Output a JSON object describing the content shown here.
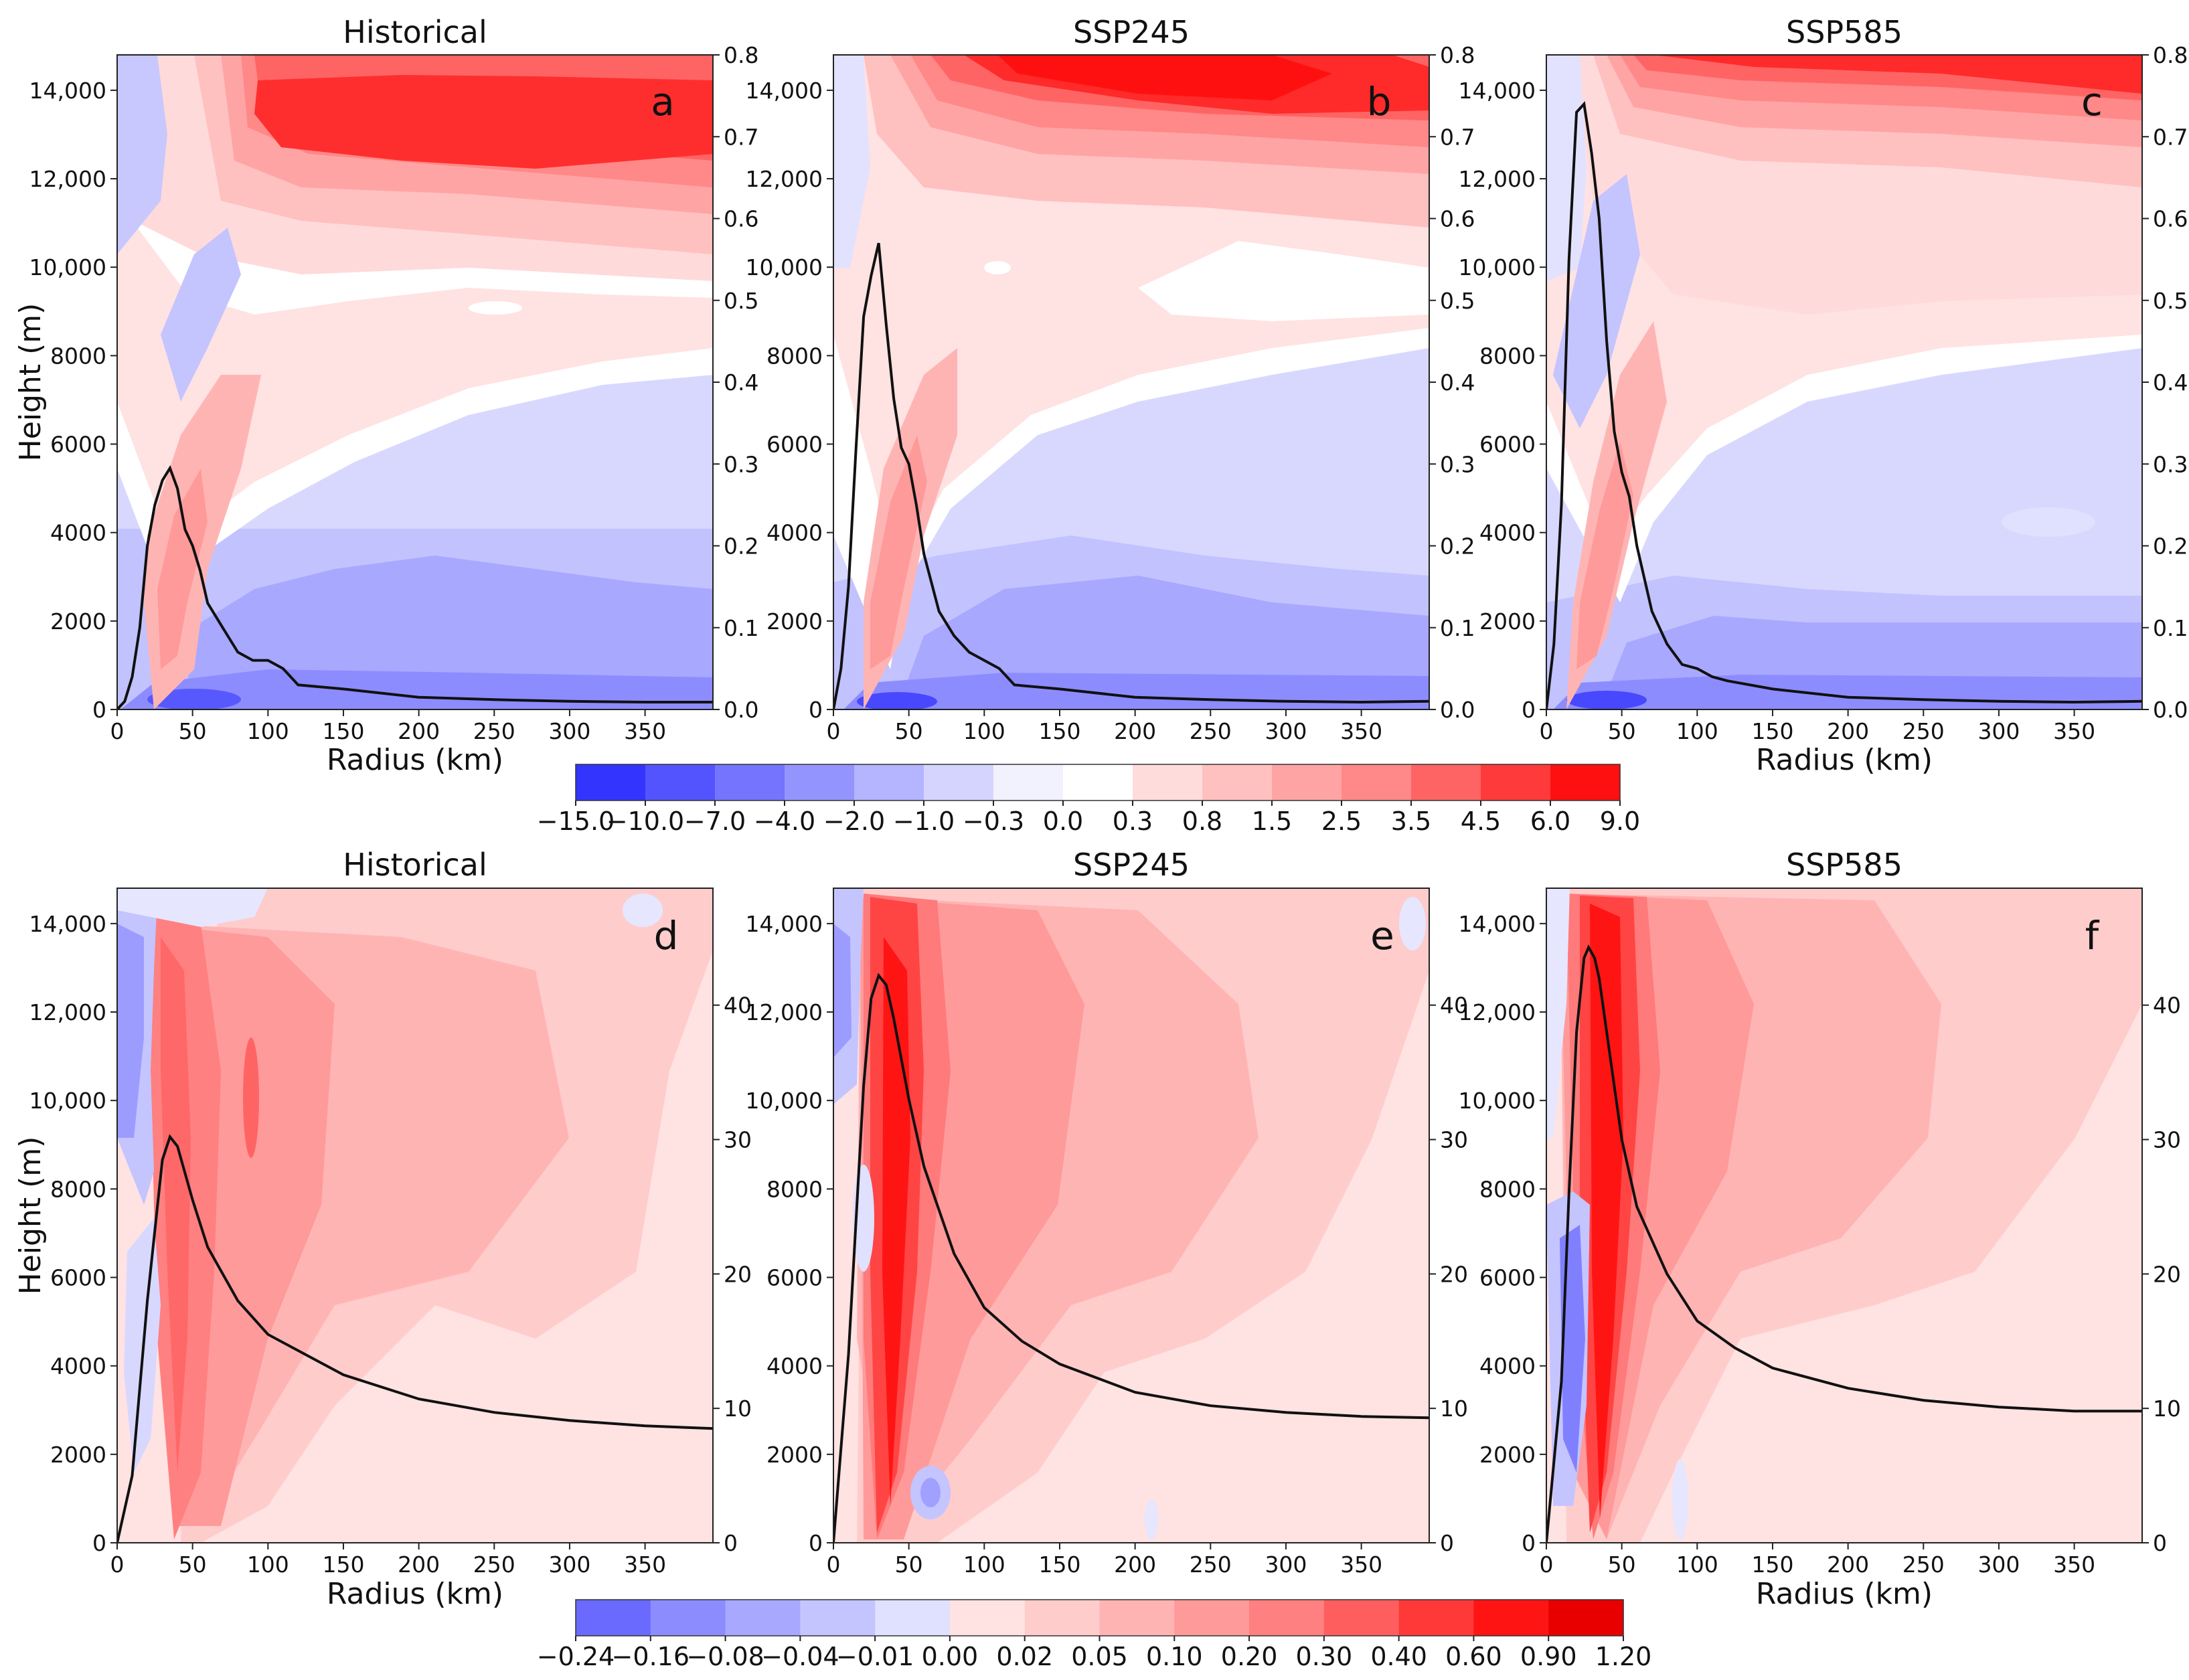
{
  "chart_data": [
    {
      "panel": "a",
      "type": "contour",
      "title": "Historical",
      "xlabel": "Radius (km)",
      "ylabel": "Height (m)",
      "xlim": [
        0,
        395
      ],
      "ylim": [
        0,
        14800
      ],
      "y2lim": [
        0,
        0.8
      ],
      "xticks": [
        0,
        50,
        100,
        150,
        200,
        250,
        300,
        350
      ],
      "yticks": [
        {
          "v": 0,
          "label": "0"
        },
        {
          "v": 2000,
          "label": "2000"
        },
        {
          "v": 4000,
          "label": "4000"
        },
        {
          "v": 6000,
          "label": "6000"
        },
        {
          "v": 8000,
          "label": "8000"
        },
        {
          "v": 10000,
          "label": "10,000"
        },
        {
          "v": 12000,
          "label": "12,000"
        },
        {
          "v": 14000,
          "label": "14,000"
        }
      ],
      "y2ticks": [
        "0.0",
        "0.1",
        "0.2",
        "0.3",
        "0.4",
        "0.5",
        "0.6",
        "0.7",
        "0.8"
      ],
      "line": {
        "x": [
          0,
          5,
          10,
          15,
          20,
          25,
          30,
          35,
          40,
          45,
          50,
          55,
          60,
          70,
          80,
          90,
          100,
          110,
          120,
          150,
          200,
          250,
          300,
          350,
          395
        ],
        "y": [
          0.0,
          0.01,
          0.04,
          0.1,
          0.2,
          0.25,
          0.28,
          0.295,
          0.27,
          0.22,
          0.2,
          0.17,
          0.13,
          0.1,
          0.07,
          0.06,
          0.06,
          0.05,
          0.03,
          0.025,
          0.015,
          0.012,
          0.01,
          0.009,
          0.009
        ]
      }
    },
    {
      "panel": "b",
      "type": "contour",
      "title": "SSP245",
      "xlabel": "",
      "ylabel": "",
      "xlim": [
        0,
        395
      ],
      "ylim": [
        0,
        14800
      ],
      "y2lim": [
        0,
        0.8
      ],
      "xticks": [
        0,
        50,
        100,
        150,
        200,
        250,
        300,
        350
      ],
      "yticks": [
        {
          "v": 0,
          "label": "0"
        },
        {
          "v": 2000,
          "label": "2000"
        },
        {
          "v": 4000,
          "label": "4000"
        },
        {
          "v": 6000,
          "label": "6000"
        },
        {
          "v": 8000,
          "label": "8000"
        },
        {
          "v": 10000,
          "label": "10,000"
        },
        {
          "v": 12000,
          "label": "12,000"
        },
        {
          "v": 14000,
          "label": "14,000"
        }
      ],
      "y2ticks": [
        "0.0",
        "0.1",
        "0.2",
        "0.3",
        "0.4",
        "0.5",
        "0.6",
        "0.7",
        "0.8"
      ],
      "line": {
        "x": [
          0,
          5,
          10,
          15,
          20,
          25,
          30,
          35,
          40,
          45,
          50,
          55,
          60,
          70,
          80,
          90,
          100,
          110,
          120,
          150,
          200,
          250,
          300,
          350,
          395
        ],
        "y": [
          0.0,
          0.05,
          0.15,
          0.32,
          0.48,
          0.53,
          0.57,
          0.47,
          0.38,
          0.32,
          0.3,
          0.25,
          0.19,
          0.12,
          0.09,
          0.07,
          0.06,
          0.05,
          0.03,
          0.025,
          0.015,
          0.012,
          0.01,
          0.009,
          0.01
        ]
      }
    },
    {
      "panel": "c",
      "type": "contour",
      "title": "SSP585",
      "xlabel": "Radius (km)",
      "ylabel": "",
      "xlim": [
        0,
        395
      ],
      "ylim": [
        0,
        14800
      ],
      "y2lim": [
        0,
        0.8
      ],
      "xticks": [
        0,
        50,
        100,
        150,
        200,
        250,
        300,
        350
      ],
      "yticks": [
        {
          "v": 0,
          "label": "0"
        },
        {
          "v": 2000,
          "label": "2000"
        },
        {
          "v": 4000,
          "label": "4000"
        },
        {
          "v": 6000,
          "label": "6000"
        },
        {
          "v": 8000,
          "label": "8000"
        },
        {
          "v": 10000,
          "label": "10,000"
        },
        {
          "v": 12000,
          "label": "12,000"
        },
        {
          "v": 14000,
          "label": "14,000"
        }
      ],
      "y2ticks": [
        "0.0",
        "0.1",
        "0.2",
        "0.3",
        "0.4",
        "0.5",
        "0.6",
        "0.7",
        "0.8"
      ],
      "line": {
        "x": [
          0,
          5,
          10,
          15,
          20,
          25,
          30,
          35,
          40,
          45,
          50,
          55,
          60,
          70,
          80,
          90,
          100,
          110,
          120,
          150,
          200,
          250,
          300,
          350,
          395
        ],
        "y": [
          0.0,
          0.08,
          0.25,
          0.55,
          0.73,
          0.74,
          0.68,
          0.6,
          0.45,
          0.34,
          0.29,
          0.26,
          0.2,
          0.12,
          0.08,
          0.055,
          0.05,
          0.04,
          0.035,
          0.025,
          0.015,
          0.012,
          0.01,
          0.009,
          0.01
        ]
      }
    },
    {
      "panel": "d",
      "type": "contour",
      "title": "Historical",
      "xlabel": "Radius (km)",
      "ylabel": "Height (m)",
      "xlim": [
        0,
        395
      ],
      "ylim": [
        0,
        14800
      ],
      "y2lim": [
        0,
        48.7
      ],
      "xticks": [
        0,
        50,
        100,
        150,
        200,
        250,
        300,
        350
      ],
      "yticks": [
        {
          "v": 0,
          "label": "0"
        },
        {
          "v": 2000,
          "label": "2000"
        },
        {
          "v": 4000,
          "label": "4000"
        },
        {
          "v": 6000,
          "label": "6000"
        },
        {
          "v": 8000,
          "label": "8000"
        },
        {
          "v": 10000,
          "label": "10,000"
        },
        {
          "v": 12000,
          "label": "12,000"
        },
        {
          "v": 14000,
          "label": "14,000"
        }
      ],
      "y2ticks": [
        "0",
        "10",
        "20",
        "30",
        "40"
      ],
      "line": {
        "x": [
          0,
          10,
          20,
          30,
          35,
          40,
          50,
          60,
          80,
          100,
          125,
          150,
          200,
          250,
          300,
          350,
          395
        ],
        "y": [
          0,
          5,
          18,
          28.5,
          30.2,
          29.5,
          25.5,
          22,
          18,
          15.5,
          14,
          12.5,
          10.7,
          9.7,
          9.1,
          8.7,
          8.5
        ]
      }
    },
    {
      "panel": "e",
      "type": "contour",
      "title": "SSP245",
      "xlabel": "",
      "ylabel": "",
      "xlim": [
        0,
        395
      ],
      "ylim": [
        0,
        14800
      ],
      "y2lim": [
        0,
        48.7
      ],
      "xticks": [
        0,
        50,
        100,
        150,
        200,
        250,
        300,
        350
      ],
      "yticks": [
        {
          "v": 0,
          "label": "0"
        },
        {
          "v": 2000,
          "label": "2000"
        },
        {
          "v": 4000,
          "label": "4000"
        },
        {
          "v": 6000,
          "label": "6000"
        },
        {
          "v": 8000,
          "label": "8000"
        },
        {
          "v": 10000,
          "label": "10,000"
        },
        {
          "v": 12000,
          "label": "12,000"
        },
        {
          "v": 14000,
          "label": "14,000"
        }
      ],
      "y2ticks": [
        "0",
        "10",
        "20",
        "30",
        "40"
      ],
      "line": {
        "x": [
          0,
          10,
          20,
          25,
          30,
          35,
          40,
          50,
          60,
          80,
          100,
          125,
          150,
          200,
          250,
          300,
          350,
          395
        ],
        "y": [
          0,
          14,
          34,
          40.5,
          42.2,
          41.5,
          39,
          33,
          28,
          21.5,
          17.5,
          15,
          13.3,
          11.2,
          10.2,
          9.7,
          9.4,
          9.3
        ]
      }
    },
    {
      "panel": "f",
      "type": "contour",
      "title": "SSP585",
      "xlabel": "Radius (km)",
      "ylabel": "",
      "xlim": [
        0,
        395
      ],
      "ylim": [
        0,
        14800
      ],
      "y2lim": [
        0,
        48.7
      ],
      "xticks": [
        0,
        50,
        100,
        150,
        200,
        250,
        300,
        350
      ],
      "yticks": [
        {
          "v": 0,
          "label": "0"
        },
        {
          "v": 2000,
          "label": "2000"
        },
        {
          "v": 4000,
          "label": "4000"
        },
        {
          "v": 6000,
          "label": "6000"
        },
        {
          "v": 8000,
          "label": "8000"
        },
        {
          "v": 10000,
          "label": "10,000"
        },
        {
          "v": 12000,
          "label": "12,000"
        },
        {
          "v": 14000,
          "label": "14,000"
        }
      ],
      "y2ticks": [
        "0",
        "10",
        "20",
        "30",
        "40"
      ],
      "line": {
        "x": [
          0,
          10,
          15,
          20,
          25,
          28,
          32,
          35,
          40,
          50,
          60,
          80,
          100,
          125,
          150,
          200,
          250,
          300,
          350,
          395
        ],
        "y": [
          0,
          12,
          26,
          38,
          43.5,
          44.3,
          43.5,
          42,
          38,
          30,
          25,
          20,
          16.5,
          14.5,
          13,
          11.5,
          10.6,
          10.1,
          9.8,
          9.8
        ]
      }
    }
  ],
  "colorbars": [
    {
      "name": "top",
      "ticks": [
        "−15.0",
        "−10.0",
        "−7.0",
        "−4.0",
        "−2.0",
        "−1.0",
        "−0.3",
        "0.0",
        "0.3",
        "0.8",
        "1.5",
        "2.5",
        "3.5",
        "4.5",
        "6.0",
        "9.0"
      ],
      "colors": [
        "#3434ff",
        "#5454ff",
        "#7474ff",
        "#9494ff",
        "#b4b4ff",
        "#d4d4ff",
        "#f2f2ff",
        "#ffffff",
        "#ffdcdc",
        "#ffc0c0",
        "#ffa4a4",
        "#ff8888",
        "#ff6464",
        "#ff3a3a",
        "#ff1010"
      ]
    },
    {
      "name": "bottom",
      "ticks": [
        "−0.24",
        "−0.16",
        "−0.08",
        "−0.04",
        "−0.01",
        "0.00",
        "0.02",
        "0.05",
        "0.10",
        "0.20",
        "0.30",
        "0.40",
        "0.60",
        "0.90",
        "1.20"
      ],
      "colors": [
        "#6a6aff",
        "#8c8cff",
        "#a8a8ff",
        "#c4c4ff",
        "#e0e0ff",
        "#ffe2e2",
        "#ffcccc",
        "#ffb4b4",
        "#ff9a9a",
        "#ff8080",
        "#ff5e5e",
        "#ff3838",
        "#ff1414",
        "#e80000"
      ]
    }
  ]
}
